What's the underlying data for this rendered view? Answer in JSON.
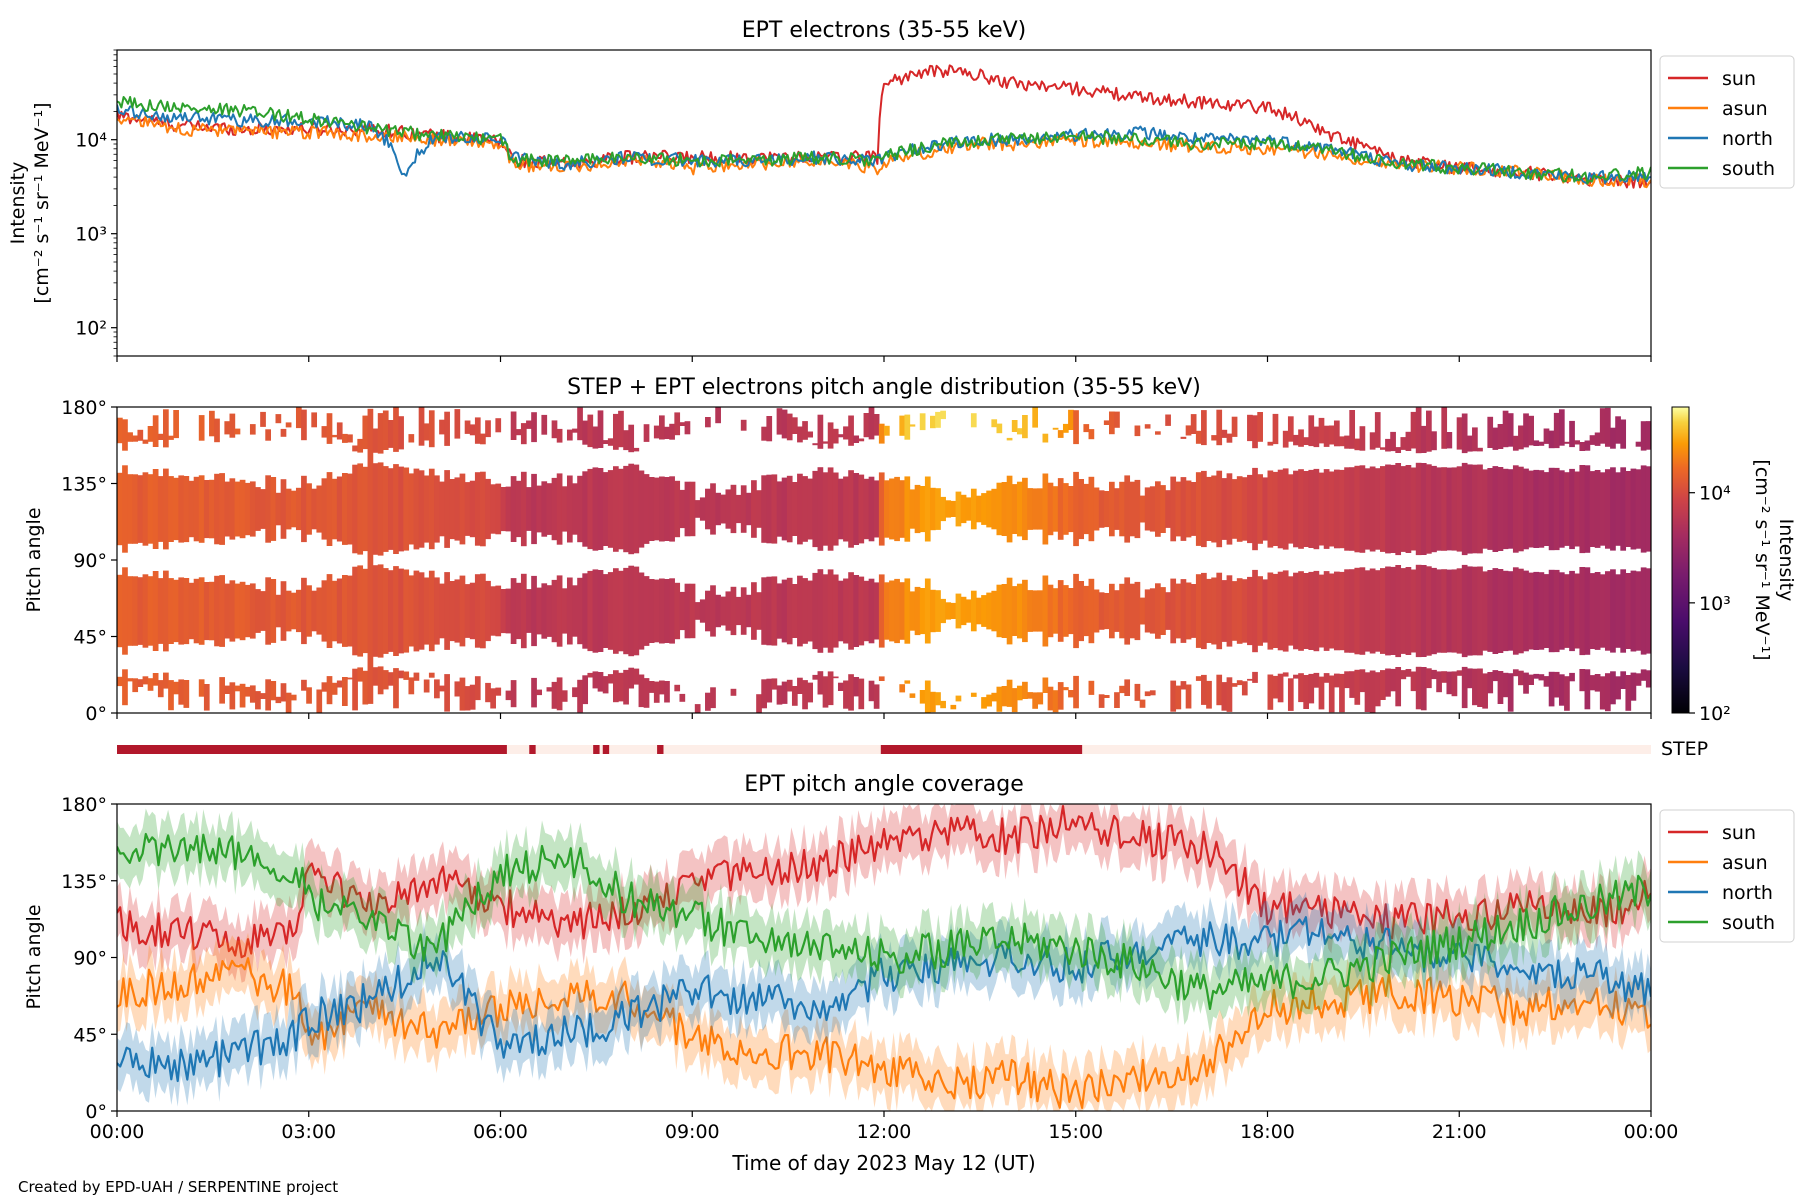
{
  "footer": {
    "credit": "Created by EPD-UAH / SERPENTINE project"
  },
  "x_axis": {
    "label": "Time of day 2023 May 12 (UT)",
    "tick_labels": [
      "00:00",
      "03:00",
      "06:00",
      "09:00",
      "12:00",
      "15:00",
      "18:00",
      "21:00",
      "00:00"
    ],
    "range_hours": [
      0,
      24
    ]
  },
  "colors": {
    "sun": "#d62728",
    "asun": "#ff7f0e",
    "north": "#1f77b4",
    "south": "#2ca02c",
    "step_on": "#b2182b",
    "step_off": "#fdeee8"
  },
  "chart_data": [
    {
      "type": "line",
      "title": "EPT electrons (35-55 keV)",
      "ylabel_line1": "Intensity",
      "ylabel_line2": "[cm⁻² s⁻¹ sr⁻¹ MeV⁻¹]",
      "yscale": "log",
      "ylim": [
        50,
        90000
      ],
      "y_tick_labels": [
        "10²",
        "10³",
        "10⁴"
      ],
      "y_tick_values": [
        100,
        1000,
        10000
      ],
      "legend": {
        "placement": "outside-right",
        "entries": [
          "sun",
          "asun",
          "north",
          "south"
        ]
      },
      "x_hours": [
        0,
        1,
        2,
        3,
        4,
        4.5,
        5,
        6,
        6.2,
        7,
        8,
        9,
        10,
        11,
        11.9,
        12,
        12.5,
        13,
        13.5,
        14,
        15,
        16,
        17,
        18,
        19,
        20,
        21,
        22,
        23,
        24
      ],
      "series": [
        {
          "name": "sun",
          "values": [
            18000,
            14000,
            13000,
            13000,
            13000,
            12000,
            11000,
            9500,
            6000,
            5500,
            6500,
            6500,
            6500,
            6500,
            6500,
            40000,
            50000,
            55000,
            48000,
            40000,
            35000,
            28000,
            25000,
            22000,
            11000,
            6000,
            5000,
            4500,
            3800,
            3500
          ]
        },
        {
          "name": "asun",
          "values": [
            17000,
            13000,
            12000,
            12000,
            11000,
            11000,
            10000,
            9000,
            5500,
            5000,
            6000,
            5000,
            5500,
            6000,
            5000,
            5500,
            7000,
            8000,
            9000,
            9000,
            10000,
            9000,
            8500,
            8000,
            7000,
            5500,
            5000,
            4500,
            3800,
            3600
          ]
        },
        {
          "name": "north",
          "values": [
            20000,
            17000,
            16000,
            16000,
            14000,
            4000,
            11000,
            10000,
            6500,
            5500,
            6500,
            6000,
            6000,
            6500,
            6000,
            6500,
            8000,
            9000,
            10000,
            10000,
            11000,
            12000,
            10000,
            10000,
            8000,
            5500,
            5000,
            4500,
            3900,
            4200
          ]
        },
        {
          "name": "south",
          "values": [
            25000,
            22000,
            20000,
            17000,
            13000,
            12000,
            11000,
            10000,
            6000,
            6000,
            6500,
            6000,
            6000,
            6500,
            6000,
            6500,
            8000,
            9000,
            10000,
            10000,
            11000,
            10000,
            9000,
            9000,
            7500,
            5500,
            5000,
            4500,
            4000,
            4500
          ]
        }
      ]
    },
    {
      "type": "heatmap",
      "title": "STEP + EPT electrons pitch angle distribution (35-55 keV)",
      "ylabel": "Pitch angle",
      "ylim": [
        0,
        180
      ],
      "y_tick_labels": [
        "0°",
        "45°",
        "90°",
        "135°",
        "180°"
      ],
      "y_tick_values": [
        0,
        45,
        90,
        135,
        180
      ],
      "colorbar": {
        "label_line1": "Intensity",
        "label_line2": "[cm⁻² s⁻¹ sr⁻¹ MeV⁻¹]",
        "scale": "log",
        "range": [
          100,
          60000
        ],
        "tick_labels": [
          "10²",
          "10³",
          "10⁴"
        ],
        "tick_values": [
          100,
          1000,
          10000
        ]
      },
      "intensity_x_hours": [
        0,
        2,
        4,
        6,
        6.2,
        8,
        10,
        11.9,
        12,
        13,
        14,
        15,
        16,
        17,
        18,
        20,
        22,
        24
      ],
      "intensity_values": [
        14000,
        13000,
        12000,
        9000,
        6000,
        6000,
        6000,
        6000,
        20000,
        30000,
        25000,
        14000,
        12000,
        11000,
        9000,
        6000,
        4500,
        3800
      ],
      "gap_centers_deg": [
        30,
        90,
        150
      ],
      "gap_depth_x_hours": [
        0,
        3,
        4,
        5,
        6,
        7,
        8,
        9,
        10,
        11,
        12,
        13,
        14,
        15,
        16,
        17,
        18,
        19,
        20,
        21,
        22,
        23,
        24
      ],
      "gap_depth_values": [
        0.3,
        0.8,
        0.1,
        0.5,
        0.6,
        0.6,
        0.2,
        0.9,
        0.8,
        0.4,
        0.5,
        0.9,
        0.7,
        0.6,
        0.8,
        0.5,
        0.4,
        0.3,
        0.2,
        0.2,
        0.3,
        0.3,
        0.3
      ]
    },
    {
      "type": "timeline",
      "label": "STEP",
      "on_intervals_hours": [
        [
          0,
          6.1
        ],
        [
          6.45,
          6.55
        ],
        [
          7.45,
          7.55
        ],
        [
          7.6,
          7.7
        ],
        [
          8.45,
          8.55
        ],
        [
          11.95,
          15.1
        ]
      ]
    },
    {
      "type": "area",
      "title": "EPT pitch angle coverage",
      "ylabel": "Pitch angle",
      "ylim": [
        0,
        180
      ],
      "y_tick_labels": [
        "0°",
        "45°",
        "90°",
        "135°",
        "180°"
      ],
      "y_tick_values": [
        0,
        45,
        90,
        135,
        180
      ],
      "legend": {
        "placement": "outside-right",
        "entries": [
          "sun",
          "asun",
          "north",
          "south"
        ]
      },
      "x_hours": [
        0,
        1,
        2,
        2.8,
        3,
        4,
        5,
        6,
        7,
        8,
        9,
        10,
        11,
        12,
        13,
        14,
        15,
        16,
        17,
        18,
        19,
        20,
        21,
        22,
        23,
        24
      ],
      "series": [
        {
          "name": "sun",
          "values": [
            110,
            105,
            100,
            110,
            140,
            120,
            135,
            120,
            110,
            115,
            135,
            140,
            145,
            155,
            165,
            160,
            170,
            160,
            155,
            120,
            115,
            110,
            115,
            120,
            115,
            125
          ],
          "spread": 15
        },
        {
          "name": "asun",
          "values": [
            70,
            75,
            80,
            70,
            40,
            60,
            45,
            60,
            70,
            65,
            45,
            35,
            35,
            25,
            15,
            20,
            10,
            20,
            25,
            60,
            65,
            70,
            65,
            60,
            65,
            55
          ],
          "spread": 15
        },
        {
          "name": "north",
          "values": [
            30,
            25,
            35,
            45,
            55,
            65,
            90,
            40,
            45,
            55,
            70,
            65,
            60,
            80,
            85,
            90,
            85,
            95,
            100,
            100,
            105,
            95,
            90,
            85,
            80,
            70
          ],
          "spread": 15
        },
        {
          "name": "south",
          "values": [
            150,
            155,
            150,
            140,
            125,
            110,
            95,
            140,
            150,
            125,
            115,
            100,
            95,
            90,
            95,
            100,
            95,
            85,
            70,
            75,
            80,
            90,
            100,
            110,
            120,
            130
          ],
          "spread": 15
        }
      ]
    }
  ]
}
